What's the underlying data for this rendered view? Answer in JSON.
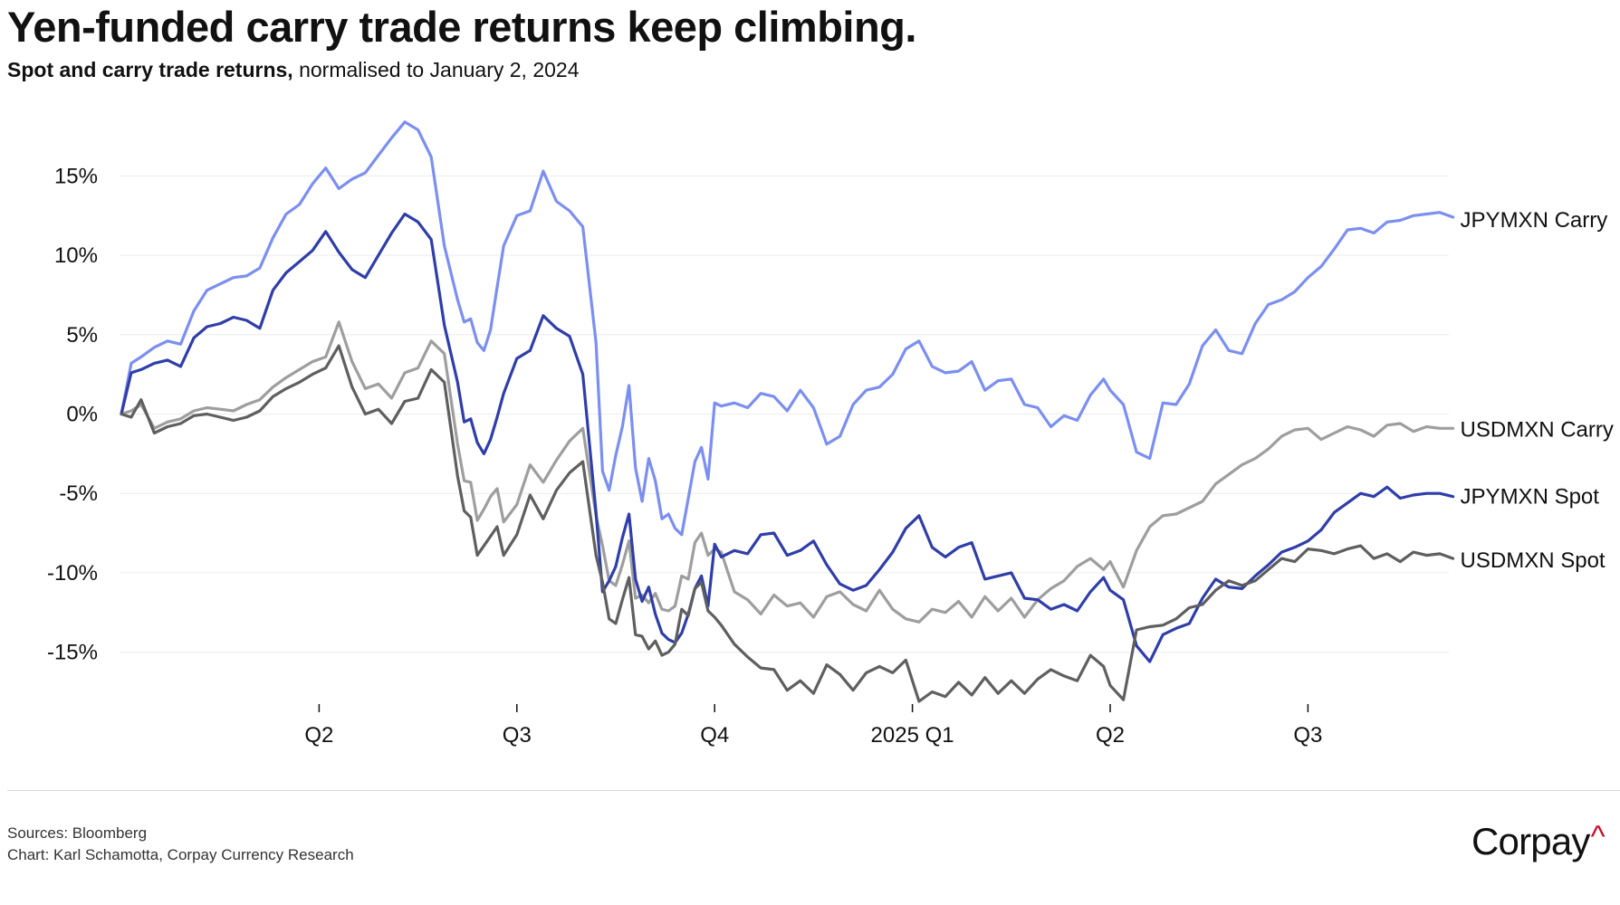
{
  "title": "Yen-funded carry trade returns keep climbing.",
  "subtitle": {
    "bold": "Spot and carry trade returns,",
    "regular": "normalised to January 2, 2024"
  },
  "footer": {
    "sources": "Sources: Bloomberg",
    "credit": "Chart: Karl Schamotta, Corpay Currency Research",
    "brand": "Corpay",
    "brand_mark": "^"
  },
  "chart_data": {
    "type": "line",
    "x_unit": "months since 2024-01-02",
    "xlim": [
      0,
      20.2
    ],
    "ylim": [
      -19,
      20
    ],
    "y_ticks": [
      {
        "value": 15,
        "label": "15%"
      },
      {
        "value": 10,
        "label": "10%"
      },
      {
        "value": 5,
        "label": "5%"
      },
      {
        "value": 0,
        "label": "0%"
      },
      {
        "value": -5,
        "label": "-5%"
      },
      {
        "value": -10,
        "label": "-10%"
      },
      {
        "value": -15,
        "label": "-15%"
      }
    ],
    "x_ticks": [
      {
        "value": 3,
        "label": "Q2"
      },
      {
        "value": 6,
        "label": "Q3"
      },
      {
        "value": 9,
        "label": "Q4"
      },
      {
        "value": 12,
        "label": "2025 Q1"
      },
      {
        "value": 15,
        "label": "Q2"
      },
      {
        "value": 18,
        "label": "Q3"
      }
    ],
    "gridlines": "horizontal",
    "legend": "direct labels at line ends",
    "series": [
      {
        "name": "JPYMXN Carry",
        "color": "#7b8ff0",
        "x": [
          0,
          0.15,
          0.3,
          0.5,
          0.7,
          0.9,
          1.1,
          1.3,
          1.5,
          1.7,
          1.9,
          2.1,
          2.3,
          2.5,
          2.7,
          2.9,
          3.1,
          3.3,
          3.5,
          3.7,
          3.9,
          4.1,
          4.3,
          4.5,
          4.7,
          4.9,
          5.1,
          5.2,
          5.3,
          5.4,
          5.5,
          5.6,
          5.7,
          5.8,
          6.0,
          6.2,
          6.4,
          6.6,
          6.8,
          7.0,
          7.2,
          7.3,
          7.4,
          7.5,
          7.6,
          7.7,
          7.8,
          7.9,
          8.0,
          8.1,
          8.2,
          8.3,
          8.4,
          8.5,
          8.6,
          8.7,
          8.8,
          8.9,
          9.0,
          9.1,
          9.3,
          9.5,
          9.7,
          9.9,
          10.1,
          10.3,
          10.5,
          10.7,
          10.9,
          11.1,
          11.3,
          11.5,
          11.7,
          11.9,
          12.1,
          12.3,
          12.5,
          12.7,
          12.9,
          13.1,
          13.3,
          13.5,
          13.7,
          13.9,
          14.1,
          14.3,
          14.5,
          14.7,
          14.9,
          15.0,
          15.2,
          15.4,
          15.6,
          15.8,
          16.0,
          16.2,
          16.4,
          16.6,
          16.8,
          17.0,
          17.2,
          17.4,
          17.6,
          17.8,
          18.0,
          18.2,
          18.4,
          18.6,
          18.8,
          19.0,
          19.2,
          19.4,
          19.6,
          19.8,
          20.0,
          20.2
        ],
        "values": [
          0,
          3.2,
          3.6,
          4.2,
          4.6,
          4.4,
          6.5,
          7.8,
          8.2,
          8.6,
          8.7,
          9.2,
          11.1,
          12.6,
          13.2,
          14.5,
          15.5,
          14.2,
          14.8,
          15.2,
          16.3,
          17.4,
          18.4,
          17.9,
          16.2,
          10.6,
          7.2,
          5.8,
          6.0,
          4.5,
          4.0,
          5.3,
          8.0,
          10.6,
          12.5,
          12.8,
          15.3,
          13.4,
          12.8,
          11.8,
          4.5,
          -3.6,
          -4.8,
          -2.6,
          -0.8,
          1.8,
          -3.4,
          -5.5,
          -2.8,
          -4.2,
          -6.6,
          -6.3,
          -7.2,
          -7.6,
          -5.3,
          -3.0,
          -2.1,
          -4.1,
          0.7,
          0.5,
          0.7,
          0.4,
          1.3,
          1.1,
          0.2,
          1.5,
          0.4,
          -1.9,
          -1.4,
          0.6,
          1.5,
          1.7,
          2.5,
          4.1,
          4.6,
          3.0,
          2.6,
          2.7,
          3.3,
          1.5,
          2.1,
          2.2,
          0.6,
          0.4,
          -0.8,
          -0.1,
          -0.4,
          1.2,
          2.2,
          1.5,
          0.6,
          -2.4,
          -2.8,
          0.7,
          0.6,
          1.9,
          4.3,
          5.3,
          4.0,
          3.8,
          5.7,
          6.9,
          7.2,
          7.7,
          8.6,
          9.3,
          10.4,
          11.6,
          11.7,
          11.4,
          12.1,
          12.2,
          12.5,
          12.6,
          12.7,
          12.4
        ]
      },
      {
        "name": "USDMXN Carry",
        "color": "#9e9e9e",
        "x": [
          0,
          0.15,
          0.3,
          0.5,
          0.7,
          0.9,
          1.1,
          1.3,
          1.5,
          1.7,
          1.9,
          2.1,
          2.3,
          2.5,
          2.7,
          2.9,
          3.1,
          3.3,
          3.5,
          3.7,
          3.9,
          4.1,
          4.3,
          4.5,
          4.7,
          4.9,
          5.1,
          5.2,
          5.3,
          5.4,
          5.5,
          5.6,
          5.7,
          5.8,
          6.0,
          6.2,
          6.4,
          6.6,
          6.8,
          7.0,
          7.2,
          7.3,
          7.4,
          7.5,
          7.6,
          7.7,
          7.8,
          7.9,
          8.0,
          8.1,
          8.2,
          8.3,
          8.4,
          8.5,
          8.6,
          8.7,
          8.8,
          8.9,
          9.0,
          9.1,
          9.3,
          9.5,
          9.7,
          9.9,
          10.1,
          10.3,
          10.5,
          10.7,
          10.9,
          11.1,
          11.3,
          11.5,
          11.7,
          11.9,
          12.1,
          12.3,
          12.5,
          12.7,
          12.9,
          13.1,
          13.3,
          13.5,
          13.7,
          13.9,
          14.1,
          14.3,
          14.5,
          14.7,
          14.9,
          15.0,
          15.2,
          15.4,
          15.6,
          15.8,
          16.0,
          16.2,
          16.4,
          16.6,
          16.8,
          17.0,
          17.2,
          17.4,
          17.6,
          17.8,
          18.0,
          18.2,
          18.4,
          18.6,
          18.8,
          19.0,
          19.2,
          19.4,
          19.6,
          19.8,
          20.0,
          20.2
        ],
        "values": [
          0,
          0.2,
          0.6,
          -0.9,
          -0.5,
          -0.3,
          0.2,
          0.4,
          0.3,
          0.2,
          0.6,
          0.9,
          1.7,
          2.3,
          2.8,
          3.3,
          3.6,
          5.8,
          3.3,
          1.6,
          1.9,
          1.0,
          2.6,
          2.9,
          4.6,
          3.8,
          -1.9,
          -4.2,
          -4.3,
          -6.7,
          -6.0,
          -5.2,
          -4.7,
          -6.8,
          -5.7,
          -3.2,
          -4.3,
          -2.9,
          -1.7,
          -0.9,
          -6.4,
          -8.3,
          -10.5,
          -10.8,
          -9.5,
          -8.0,
          -11.6,
          -11.4,
          -11.9,
          -11.3,
          -12.3,
          -12.4,
          -12.1,
          -10.2,
          -10.4,
          -8.1,
          -7.5,
          -8.9,
          -8.5,
          -8.7,
          -11.2,
          -11.7,
          -12.6,
          -11.4,
          -12.1,
          -11.9,
          -12.8,
          -11.5,
          -11.2,
          -12.0,
          -12.4,
          -11.1,
          -12.3,
          -12.9,
          -13.1,
          -12.3,
          -12.5,
          -11.8,
          -12.8,
          -11.5,
          -12.4,
          -11.6,
          -12.8,
          -11.7,
          -11.0,
          -10.5,
          -9.6,
          -9.1,
          -9.8,
          -9.3,
          -10.9,
          -8.6,
          -7.1,
          -6.4,
          -6.3,
          -5.9,
          -5.5,
          -4.4,
          -3.8,
          -3.2,
          -2.8,
          -2.2,
          -1.4,
          -1.0,
          -0.9,
          -1.6,
          -1.2,
          -0.8,
          -1.0,
          -1.4,
          -0.7,
          -0.6,
          -1.1,
          -0.8,
          -0.9,
          -0.9
        ]
      },
      {
        "name": "JPYMXN Spot",
        "color": "#2f3ea8",
        "x": [
          0,
          0.15,
          0.3,
          0.5,
          0.7,
          0.9,
          1.1,
          1.3,
          1.5,
          1.7,
          1.9,
          2.1,
          2.3,
          2.5,
          2.7,
          2.9,
          3.1,
          3.3,
          3.5,
          3.7,
          3.9,
          4.1,
          4.3,
          4.5,
          4.7,
          4.9,
          5.1,
          5.2,
          5.3,
          5.4,
          5.5,
          5.6,
          5.7,
          5.8,
          6.0,
          6.2,
          6.4,
          6.6,
          6.8,
          7.0,
          7.2,
          7.3,
          7.4,
          7.5,
          7.6,
          7.7,
          7.8,
          7.9,
          8.0,
          8.1,
          8.2,
          8.3,
          8.4,
          8.5,
          8.6,
          8.7,
          8.8,
          8.9,
          9.0,
          9.1,
          9.3,
          9.5,
          9.7,
          9.9,
          10.1,
          10.3,
          10.5,
          10.7,
          10.9,
          11.1,
          11.3,
          11.5,
          11.7,
          11.9,
          12.1,
          12.3,
          12.5,
          12.7,
          12.9,
          13.1,
          13.3,
          13.5,
          13.7,
          13.9,
          14.1,
          14.3,
          14.5,
          14.7,
          14.9,
          15.0,
          15.2,
          15.4,
          15.6,
          15.8,
          16.0,
          16.2,
          16.4,
          16.6,
          16.8,
          17.0,
          17.2,
          17.4,
          17.6,
          17.8,
          18.0,
          18.2,
          18.4,
          18.6,
          18.8,
          19.0,
          19.2,
          19.4,
          19.6,
          19.8,
          20.0,
          20.2
        ],
        "values": [
          0,
          2.6,
          2.8,
          3.2,
          3.4,
          3.0,
          4.8,
          5.5,
          5.7,
          6.1,
          5.9,
          5.4,
          7.8,
          8.9,
          9.6,
          10.3,
          11.5,
          10.2,
          9.1,
          8.6,
          10.0,
          11.4,
          12.6,
          12.1,
          11.0,
          5.6,
          2.0,
          -0.5,
          -0.3,
          -1.8,
          -2.5,
          -1.6,
          -0.2,
          1.3,
          3.5,
          4.0,
          6.2,
          5.4,
          4.9,
          2.5,
          -6.2,
          -11.2,
          -10.5,
          -9.6,
          -7.8,
          -6.3,
          -10.4,
          -11.8,
          -10.9,
          -12.6,
          -13.8,
          -14.2,
          -14.4,
          -13.8,
          -12.6,
          -11.0,
          -10.2,
          -12.1,
          -8.2,
          -9.0,
          -8.6,
          -8.8,
          -7.6,
          -7.5,
          -8.9,
          -8.6,
          -8.0,
          -9.5,
          -10.7,
          -11.1,
          -10.8,
          -9.8,
          -8.7,
          -7.2,
          -6.4,
          -8.4,
          -9.0,
          -8.4,
          -8.1,
          -10.4,
          -10.2,
          -10.0,
          -11.6,
          -11.7,
          -12.3,
          -12.0,
          -12.4,
          -11.2,
          -10.3,
          -11.1,
          -11.7,
          -14.6,
          -15.6,
          -13.9,
          -13.5,
          -13.2,
          -11.6,
          -10.4,
          -10.9,
          -11.0,
          -10.2,
          -9.5,
          -8.7,
          -8.4,
          -8.0,
          -7.3,
          -6.2,
          -5.6,
          -5.0,
          -5.2,
          -4.6,
          -5.3,
          -5.1,
          -5.0,
          -5.0,
          -5.2
        ]
      },
      {
        "name": "USDMXN Spot",
        "color": "#5f5f5f",
        "x": [
          0,
          0.15,
          0.3,
          0.5,
          0.7,
          0.9,
          1.1,
          1.3,
          1.5,
          1.7,
          1.9,
          2.1,
          2.3,
          2.5,
          2.7,
          2.9,
          3.1,
          3.3,
          3.5,
          3.7,
          3.9,
          4.1,
          4.3,
          4.5,
          4.7,
          4.9,
          5.1,
          5.2,
          5.3,
          5.4,
          5.5,
          5.6,
          5.7,
          5.8,
          6.0,
          6.2,
          6.4,
          6.6,
          6.8,
          7.0,
          7.2,
          7.3,
          7.4,
          7.5,
          7.6,
          7.7,
          7.8,
          7.9,
          8.0,
          8.1,
          8.2,
          8.3,
          8.4,
          8.5,
          8.6,
          8.7,
          8.8,
          8.9,
          9.0,
          9.1,
          9.3,
          9.5,
          9.7,
          9.9,
          10.1,
          10.3,
          10.5,
          10.7,
          10.9,
          11.1,
          11.3,
          11.5,
          11.7,
          11.9,
          12.1,
          12.3,
          12.5,
          12.7,
          12.9,
          13.1,
          13.3,
          13.5,
          13.7,
          13.9,
          14.1,
          14.3,
          14.5,
          14.7,
          14.9,
          15.0,
          15.2,
          15.4,
          15.6,
          15.8,
          16.0,
          16.2,
          16.4,
          16.6,
          16.8,
          17.0,
          17.2,
          17.4,
          17.6,
          17.8,
          18.0,
          18.2,
          18.4,
          18.6,
          18.8,
          19.0,
          19.2,
          19.4,
          19.6,
          19.8,
          20.0,
          20.2
        ],
        "values": [
          0,
          -0.2,
          0.9,
          -1.2,
          -0.8,
          -0.6,
          -0.1,
          0.0,
          -0.2,
          -0.4,
          -0.2,
          0.2,
          1.1,
          1.6,
          2.0,
          2.5,
          2.9,
          4.3,
          1.7,
          0.0,
          0.3,
          -0.6,
          0.8,
          1.0,
          2.8,
          2.0,
          -3.9,
          -6.1,
          -6.5,
          -8.9,
          -8.3,
          -7.7,
          -7.1,
          -8.9,
          -7.6,
          -5.1,
          -6.6,
          -4.8,
          -3.7,
          -3.0,
          -8.9,
          -10.6,
          -12.9,
          -13.2,
          -11.7,
          -10.3,
          -13.9,
          -14.0,
          -14.8,
          -14.3,
          -15.2,
          -15.0,
          -14.5,
          -12.3,
          -12.7,
          -11.0,
          -10.6,
          -12.4,
          -12.8,
          -13.3,
          -14.5,
          -15.3,
          -16.0,
          -16.1,
          -17.4,
          -16.8,
          -17.6,
          -15.8,
          -16.4,
          -17.4,
          -16.3,
          -15.9,
          -16.3,
          -15.5,
          -18.1,
          -17.5,
          -17.8,
          -16.9,
          -17.7,
          -16.6,
          -17.6,
          -16.8,
          -17.6,
          -16.7,
          -16.1,
          -16.5,
          -16.8,
          -15.2,
          -15.9,
          -17.1,
          -18.0,
          -13.6,
          -13.4,
          -13.3,
          -12.9,
          -12.2,
          -12.0,
          -11.1,
          -10.5,
          -10.8,
          -10.5,
          -9.8,
          -9.1,
          -9.3,
          -8.5,
          -8.6,
          -8.8,
          -8.5,
          -8.3,
          -9.1,
          -8.8,
          -9.3,
          -8.7,
          -8.9,
          -8.8,
          -9.1
        ]
      }
    ]
  }
}
